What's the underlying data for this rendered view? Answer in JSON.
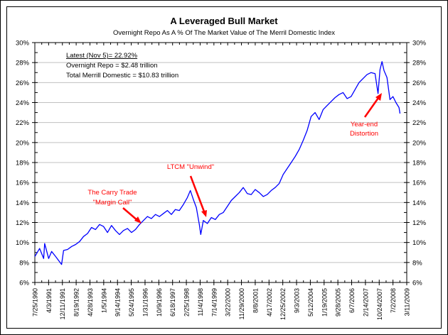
{
  "chart_data": {
    "type": "line",
    "title": "A Leveraged Bull Market",
    "subtitle": "Overnight Repo As A % Of The Market Value of The Merril Domestic Index",
    "xlabel": "",
    "ylabel": "",
    "ylim": [
      6,
      30
    ],
    "y_ticks": [
      "6%",
      "8%",
      "10%",
      "12%",
      "14%",
      "16%",
      "18%",
      "20%",
      "22%",
      "24%",
      "26%",
      "28%",
      "30%"
    ],
    "y_tick_values": [
      6,
      8,
      10,
      12,
      14,
      16,
      18,
      20,
      22,
      24,
      26,
      28,
      30
    ],
    "x_range": [
      "7/25/1990",
      "3/11/2009"
    ],
    "x_ticks": [
      "7/25/1990",
      "4/3/1991",
      "12/11/1991",
      "8/19/1992",
      "4/28/1993",
      "1/5/1994",
      "9/14/1994",
      "5/24/1995",
      "1/31/1996",
      "10/9/1996",
      "6/18/1997",
      "2/25/1998",
      "11/4/1998",
      "7/14/1999",
      "3/22/2000",
      "11/29/2000",
      "8/8/2001",
      "4/17/2002",
      "12/25/2002",
      "9/3/2003",
      "5/12/2004",
      "1/19/2005",
      "9/28/2005",
      "6/7/2006",
      "2/14/2007",
      "10/24/2007",
      "7/2/2008",
      "3/11/2009"
    ],
    "grid": "horizontal",
    "legend": "none",
    "series": [
      {
        "name": "Overnight Repo as % of Merrill Domestic Index",
        "color": "#0000ff",
        "x": [
          1990.56,
          1990.8,
          1991.0,
          1991.05,
          1991.25,
          1991.4,
          1991.6,
          1991.75,
          1991.9,
          1992.0,
          1992.2,
          1992.4,
          1992.6,
          1992.8,
          1993.0,
          1993.2,
          1993.4,
          1993.6,
          1993.8,
          1994.0,
          1994.2,
          1994.4,
          1994.6,
          1994.8,
          1995.0,
          1995.2,
          1995.4,
          1995.6,
          1995.8,
          1996.0,
          1996.2,
          1996.4,
          1996.6,
          1996.8,
          1997.0,
          1997.2,
          1997.4,
          1997.6,
          1997.8,
          1998.0,
          1998.2,
          1998.35,
          1998.5,
          1998.65,
          1998.8,
          1998.87,
          1999.0,
          1999.2,
          1999.4,
          1999.6,
          1999.8,
          2000.0,
          2000.2,
          2000.4,
          2000.6,
          2000.8,
          2001.0,
          2001.2,
          2001.4,
          2001.6,
          2001.8,
          2002.0,
          2002.2,
          2002.4,
          2002.6,
          2002.8,
          2003.0,
          2003.2,
          2003.4,
          2003.6,
          2003.8,
          2004.0,
          2004.2,
          2004.4,
          2004.6,
          2004.8,
          2005.0,
          2005.2,
          2005.4,
          2005.6,
          2005.8,
          2006.0,
          2006.2,
          2006.4,
          2006.6,
          2006.8,
          2007.0,
          2007.2,
          2007.4,
          2007.6,
          2007.75,
          2007.85,
          2007.95,
          2008.05,
          2008.2,
          2008.35,
          2008.5,
          2008.65,
          2008.8,
          2008.85
        ],
        "values": [
          8.6,
          9.4,
          8.4,
          9.9,
          8.4,
          9.1,
          8.6,
          8.2,
          7.8,
          9.2,
          9.3,
          9.6,
          9.8,
          10.1,
          10.6,
          10.9,
          11.5,
          11.3,
          11.8,
          11.6,
          11.0,
          11.7,
          11.2,
          10.8,
          11.2,
          11.4,
          11.0,
          11.3,
          11.8,
          12.2,
          12.6,
          12.4,
          12.8,
          12.6,
          12.9,
          13.2,
          12.8,
          13.3,
          13.2,
          13.8,
          14.5,
          15.2,
          14.3,
          13.5,
          11.8,
          10.8,
          12.2,
          11.9,
          12.5,
          12.3,
          12.8,
          13.0,
          13.6,
          14.2,
          14.6,
          15.0,
          15.5,
          14.9,
          14.8,
          15.3,
          15.0,
          14.6,
          14.8,
          15.2,
          15.5,
          15.9,
          16.8,
          17.4,
          18.0,
          18.6,
          19.3,
          20.2,
          21.2,
          22.6,
          23.0,
          22.3,
          23.3,
          23.7,
          24.1,
          24.5,
          24.8,
          25.0,
          24.4,
          24.6,
          25.3,
          26.0,
          26.4,
          26.8,
          27.0,
          26.9,
          24.9,
          27.3,
          28.1,
          27.2,
          26.5,
          24.3,
          24.6,
          24.0,
          23.5,
          22.9
        ]
      }
    ],
    "annotations": [
      {
        "text_lines": [
          "The Carry Trade",
          "\"Margin Call\""
        ],
        "color": "#ff0000",
        "points_to_year": 1995.8
      },
      {
        "text_lines": [
          "LTCM \"Unwind\""
        ],
        "color": "#ff0000",
        "points_to_year": 1998.9
      },
      {
        "text_lines": [
          "Year-end",
          "Distortion"
        ],
        "color": "#ff0000",
        "points_to_year": 2007.85
      }
    ]
  },
  "info_box": {
    "latest": "Latest (Nov 5)= 22.92%",
    "overnight_repo": "Overnight Repo = $2.48 trillion",
    "total_merrill": "Total Merrill Domestic = $10.83 trillion"
  },
  "colors": {
    "series": "#0000ff",
    "annotation": "#ff0000",
    "gridline": "#c0c0c0",
    "axis": "#000000"
  }
}
